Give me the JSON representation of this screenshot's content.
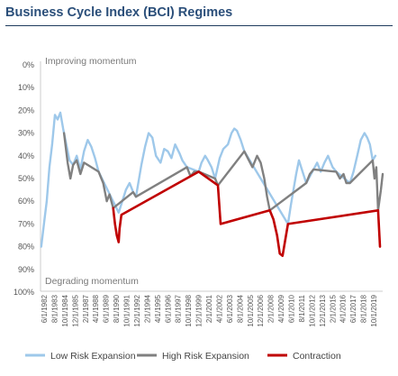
{
  "chart_data": {
    "type": "line",
    "title": "Business Cycle Index (BCI) Regimes",
    "y_ticks": [
      "0%",
      "10%",
      "20%",
      "30%",
      "40%",
      "50%",
      "60%",
      "70%",
      "80%",
      "90%",
      "100%"
    ],
    "ylim": [
      0,
      100
    ],
    "y_inverted": true,
    "annotations": {
      "top": "Improving momentum",
      "bottom": "Degrading momentum"
    },
    "x_ticks": [
      "6/1/1982",
      "8/1/1983",
      "10/1/1984",
      "12/1/1985",
      "2/1/1987",
      "4/1/1988",
      "6/1/1989",
      "8/1/1990",
      "10/1/1991",
      "12/1/1992",
      "2/1/1994",
      "4/1/1995",
      "6/1/1996",
      "8/1/1997",
      "10/1/1998",
      "12/1/1999",
      "2/1/2001",
      "4/1/2002",
      "6/1/2003",
      "8/1/2004",
      "10/1/2005",
      "12/1/2006",
      "2/1/2008",
      "4/1/2009",
      "6/1/2010",
      "8/1/2011",
      "10/1/2012",
      "12/1/2013",
      "2/1/2015",
      "4/1/2016",
      "6/1/2017",
      "8/1/2018",
      "10/1/2019"
    ],
    "x_start": 1982.42,
    "x_end": 2020.0,
    "grid": false,
    "legend_placement": "bottom",
    "series": [
      {
        "name": "Low Risk Expansion",
        "color": "#9ec8ea",
        "points": [
          [
            1982.5,
            80
          ],
          [
            1982.8,
            70
          ],
          [
            1983.1,
            60
          ],
          [
            1983.4,
            45
          ],
          [
            1983.7,
            35
          ],
          [
            1984.0,
            22
          ],
          [
            1984.3,
            24
          ],
          [
            1984.6,
            21
          ],
          [
            1984.9,
            28
          ],
          [
            1985.0,
            30
          ],
          [
            1985.6,
            42
          ],
          [
            1986.0,
            44
          ],
          [
            1986.4,
            40
          ],
          [
            1986.8,
            46
          ],
          [
            1987.2,
            38
          ],
          [
            1987.6,
            33
          ],
          [
            1988.0,
            36
          ],
          [
            1988.4,
            41
          ],
          [
            1988.8,
            47
          ],
          [
            1991.0,
            65
          ],
          [
            1991.4,
            60
          ],
          [
            1991.8,
            55
          ],
          [
            1992.2,
            52
          ],
          [
            1992.6,
            56
          ],
          [
            1992.9,
            58
          ],
          [
            1993.5,
            44
          ],
          [
            1993.9,
            36
          ],
          [
            1994.3,
            30
          ],
          [
            1994.7,
            32
          ],
          [
            1995.1,
            40
          ],
          [
            1995.6,
            43
          ],
          [
            1996.0,
            37
          ],
          [
            1996.4,
            38
          ],
          [
            1996.8,
            41
          ],
          [
            1997.2,
            35
          ],
          [
            1997.7,
            39
          ],
          [
            1998.0,
            42
          ],
          [
            1998.5,
            45
          ],
          [
            1999.8,
            47
          ],
          [
            2000.1,
            43
          ],
          [
            2000.5,
            40
          ],
          [
            2000.8,
            42
          ],
          [
            2001.2,
            45
          ],
          [
            2001.6,
            50
          ],
          [
            2002.1,
            41
          ],
          [
            2002.5,
            37
          ],
          [
            2003.0,
            35
          ],
          [
            2003.4,
            30
          ],
          [
            2003.7,
            28
          ],
          [
            2004.0,
            29
          ],
          [
            2004.4,
            33
          ],
          [
            2004.8,
            38
          ],
          [
            2009.6,
            70
          ],
          [
            2009.9,
            62
          ],
          [
            2010.2,
            55
          ],
          [
            2010.5,
            48
          ],
          [
            2010.8,
            42
          ],
          [
            2011.2,
            47
          ],
          [
            2011.6,
            52
          ],
          [
            2012.4,
            46
          ],
          [
            2012.8,
            43
          ],
          [
            2013.2,
            47
          ],
          [
            2013.6,
            43
          ],
          [
            2014.0,
            40
          ],
          [
            2014.5,
            45
          ],
          [
            2014.9,
            47
          ],
          [
            2016.4,
            52
          ],
          [
            2016.8,
            47
          ],
          [
            2017.2,
            40
          ],
          [
            2017.6,
            33
          ],
          [
            2018.0,
            30
          ],
          [
            2018.3,
            32
          ],
          [
            2018.6,
            35
          ],
          [
            2018.9,
            42
          ],
          [
            2019.2,
            40
          ]
        ]
      },
      {
        "name": "High Risk Expansion",
        "color": "#808080",
        "points": [
          [
            1985.0,
            30
          ],
          [
            1985.4,
            43
          ],
          [
            1985.7,
            50
          ],
          [
            1986.0,
            44
          ],
          [
            1986.4,
            42
          ],
          [
            1986.8,
            48
          ],
          [
            1987.2,
            43
          ],
          [
            1988.8,
            47
          ],
          [
            1989.3,
            52
          ],
          [
            1989.7,
            60
          ],
          [
            1990.0,
            57
          ],
          [
            1990.4,
            63
          ],
          [
            1992.6,
            56
          ],
          [
            1992.9,
            58
          ],
          [
            1998.5,
            45
          ],
          [
            1998.9,
            49
          ],
          [
            1999.3,
            47
          ],
          [
            1999.8,
            47
          ],
          [
            2001.6,
            50
          ],
          [
            2001.9,
            53
          ],
          [
            2004.8,
            38
          ],
          [
            2005.3,
            42
          ],
          [
            2005.7,
            45
          ],
          [
            2006.2,
            40
          ],
          [
            2006.6,
            43
          ],
          [
            2007.0,
            50
          ],
          [
            2007.3,
            58
          ],
          [
            2007.6,
            64
          ],
          [
            2011.6,
            52
          ],
          [
            2012.0,
            48
          ],
          [
            2012.4,
            46
          ],
          [
            2014.9,
            47
          ],
          [
            2015.3,
            50
          ],
          [
            2015.7,
            48
          ],
          [
            2016.0,
            52
          ],
          [
            2016.4,
            52
          ],
          [
            2018.9,
            42
          ],
          [
            2019.1,
            50
          ],
          [
            2019.3,
            45
          ],
          [
            2019.5,
            64
          ],
          [
            2019.8,
            55
          ],
          [
            2020.0,
            48
          ]
        ]
      },
      {
        "name": "Contraction",
        "color": "#c00000",
        "points": [
          [
            1990.4,
            63
          ],
          [
            1990.6,
            70
          ],
          [
            1990.8,
            75
          ],
          [
            1991.0,
            78
          ],
          [
            1991.1,
            72
          ],
          [
            1991.3,
            66
          ],
          [
            1999.8,
            47
          ],
          [
            2001.9,
            53
          ],
          [
            2002.2,
            70
          ],
          [
            2007.6,
            64
          ],
          [
            2008.0,
            68
          ],
          [
            2008.4,
            75
          ],
          [
            2008.7,
            83
          ],
          [
            2009.0,
            84
          ],
          [
            2009.3,
            77
          ],
          [
            2009.6,
            70
          ],
          [
            2019.5,
            64
          ],
          [
            2019.7,
            80
          ]
        ]
      }
    ]
  }
}
